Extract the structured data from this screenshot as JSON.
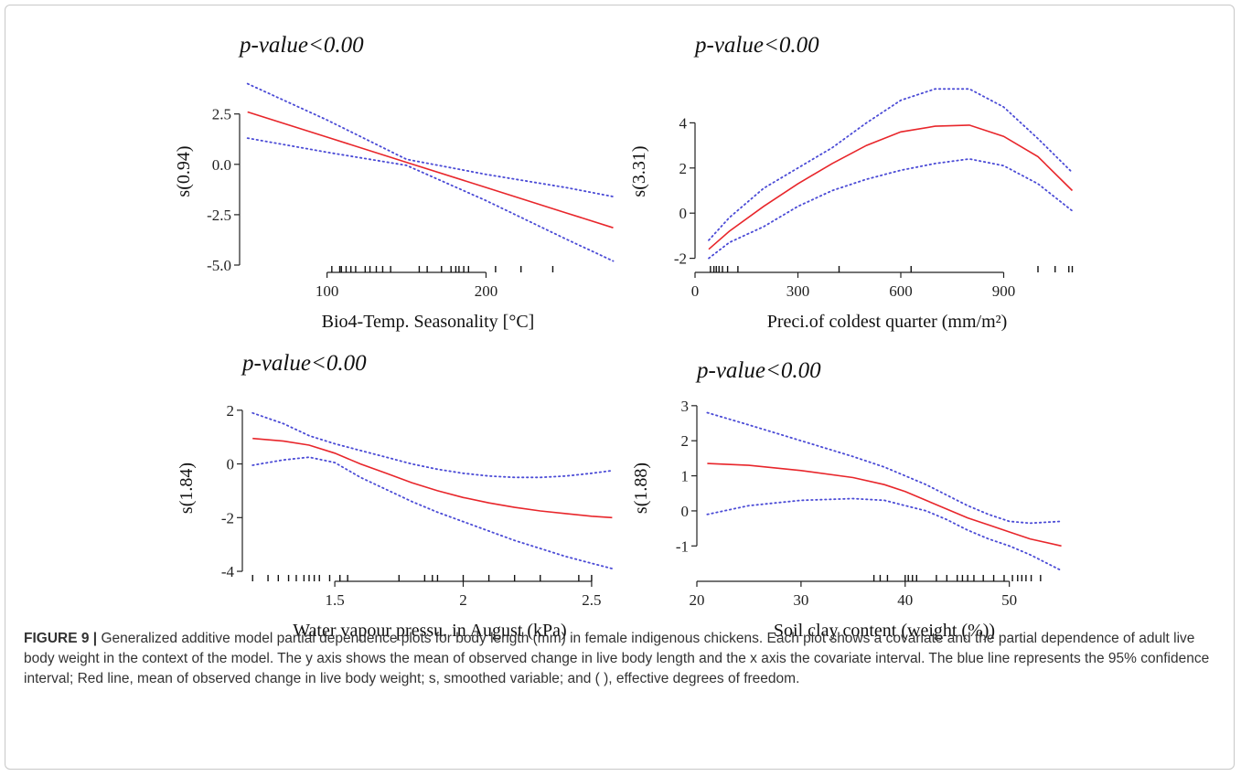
{
  "caption": {
    "label": "FIGURE 9 |",
    "text": "Generalized additive model partial dependence plots for body length (mm) in female indigenous chickens. Each plot shows a covariate and the partial dependence of adult live body weight in the context of the model. The y axis shows the mean of observed change in live body length and the x axis the covariate interval. The blue line represents the 95% confidence interval; Red line, mean of observed change in live body weight; s, smoothed variable; and ( ), effective degrees of freedom."
  },
  "colors": {
    "fit": "#e8262b",
    "ci": "#4b4bd6",
    "axis": "#222222"
  },
  "chart_data": [
    {
      "type": "line",
      "title": "p-value<0.00",
      "xlabel": "Bio4-Temp. Seasonality [°C]",
      "ylabel": "s(0.94)",
      "xlim": [
        45,
        282
      ],
      "ylim": [
        -5.0,
        4.3
      ],
      "xticks": [
        100,
        200
      ],
      "yticks": [
        -5.0,
        -2.5,
        0.0,
        2.5
      ],
      "ytick_format": "1dp",
      "series": [
        {
          "role": "fit",
          "x": [
            50,
            100,
            150,
            200,
            250,
            280
          ],
          "y": [
            2.6,
            1.35,
            0.1,
            -1.15,
            -2.4,
            -3.15
          ]
        },
        {
          "role": "upper",
          "x": [
            50,
            100,
            150,
            200,
            250,
            280
          ],
          "y": [
            4.0,
            2.2,
            0.25,
            -0.5,
            -1.15,
            -1.6
          ]
        },
        {
          "role": "lower",
          "x": [
            50,
            100,
            150,
            200,
            250,
            280
          ],
          "y": [
            1.3,
            0.6,
            -0.05,
            -1.8,
            -3.7,
            -4.8
          ]
        }
      ],
      "rug": [
        103,
        108,
        109,
        112,
        115,
        118,
        124,
        127,
        131,
        135,
        140,
        158,
        163,
        172,
        178,
        181,
        183,
        186,
        189,
        206,
        222,
        242
      ]
    },
    {
      "type": "line",
      "title": "p-value<0.00",
      "xlabel": "Preci.of coldest quarter (mm/m²)",
      "ylabel": "s(3.31)",
      "xlim": [
        0,
        1120
      ],
      "ylim": [
        -2.3,
        6.0
      ],
      "xticks": [
        0,
        300,
        600,
        900
      ],
      "yticks": [
        -2,
        0,
        2,
        4
      ],
      "ytick_format": "int",
      "series": [
        {
          "role": "fit",
          "x": [
            40,
            100,
            200,
            300,
            400,
            500,
            600,
            700,
            800,
            900,
            1000,
            1100
          ],
          "y": [
            -1.6,
            -0.8,
            0.3,
            1.3,
            2.2,
            3.0,
            3.6,
            3.85,
            3.9,
            3.4,
            2.5,
            1.0
          ]
        },
        {
          "role": "upper",
          "x": [
            40,
            100,
            200,
            300,
            400,
            500,
            600,
            700,
            800,
            900,
            1000,
            1100
          ],
          "y": [
            -1.2,
            -0.2,
            1.1,
            2.0,
            2.9,
            4.0,
            5.0,
            5.5,
            5.5,
            4.7,
            3.3,
            1.8
          ]
        },
        {
          "role": "lower",
          "x": [
            40,
            100,
            200,
            300,
            400,
            500,
            600,
            700,
            800,
            900,
            1000,
            1100
          ],
          "y": [
            -2.0,
            -1.3,
            -0.6,
            0.3,
            1.0,
            1.5,
            1.9,
            2.2,
            2.4,
            2.1,
            1.3,
            0.1
          ]
        }
      ],
      "rug": [
        45,
        55,
        62,
        70,
        80,
        95,
        125,
        420,
        630,
        1000,
        1050,
        1090,
        1100
      ]
    },
    {
      "type": "line",
      "title": "p-value<0.00",
      "xlabel": "Water vapour pressu. in August (kPa)",
      "ylabel": "s(1.84)",
      "xlim": [
        1.14,
        2.6
      ],
      "ylim": [
        -4.1,
        2.3
      ],
      "xticks": [
        1.5,
        2.0,
        2.5
      ],
      "yticks": [
        -4,
        -2,
        0,
        2
      ],
      "ytick_format": "int",
      "series": [
        {
          "role": "fit",
          "x": [
            1.18,
            1.3,
            1.4,
            1.5,
            1.6,
            1.7,
            1.8,
            1.9,
            2.0,
            2.1,
            2.2,
            2.3,
            2.4,
            2.5,
            2.58
          ],
          "y": [
            0.95,
            0.85,
            0.7,
            0.4,
            0.0,
            -0.35,
            -0.7,
            -1.0,
            -1.25,
            -1.45,
            -1.62,
            -1.75,
            -1.85,
            -1.95,
            -2.0
          ]
        },
        {
          "role": "upper",
          "x": [
            1.18,
            1.3,
            1.4,
            1.5,
            1.6,
            1.7,
            1.8,
            1.9,
            2.0,
            2.1,
            2.2,
            2.3,
            2.4,
            2.5,
            2.58
          ],
          "y": [
            1.9,
            1.5,
            1.05,
            0.75,
            0.5,
            0.25,
            0.0,
            -0.2,
            -0.35,
            -0.45,
            -0.5,
            -0.5,
            -0.45,
            -0.35,
            -0.25
          ]
        },
        {
          "role": "lower",
          "x": [
            1.18,
            1.3,
            1.4,
            1.5,
            1.6,
            1.7,
            1.8,
            1.9,
            2.0,
            2.1,
            2.2,
            2.3,
            2.4,
            2.5,
            2.58
          ],
          "y": [
            -0.05,
            0.15,
            0.25,
            0.05,
            -0.5,
            -0.95,
            -1.4,
            -1.8,
            -2.15,
            -2.5,
            -2.85,
            -3.15,
            -3.45,
            -3.7,
            -3.9
          ]
        }
      ],
      "rug": [
        1.18,
        1.24,
        1.28,
        1.32,
        1.35,
        1.38,
        1.4,
        1.42,
        1.44,
        1.48,
        1.52,
        1.55,
        1.75,
        1.85,
        1.88,
        1.9,
        2.0,
        2.1,
        2.2,
        2.3,
        2.45,
        2.5
      ]
    },
    {
      "type": "line",
      "title": "p-value<0.00",
      "xlabel": "Soil clay content (weight (%))",
      "ylabel": "s(1.88)",
      "xlim": [
        20,
        56
      ],
      "ylim": [
        -1.8,
        3.1
      ],
      "xticks": [
        20,
        30,
        40,
        50
      ],
      "yticks": [
        -1,
        0,
        1,
        2,
        3
      ],
      "ytick_format": "int",
      "series": [
        {
          "role": "fit",
          "x": [
            21,
            25,
            30,
            35,
            38,
            40,
            42,
            44,
            46,
            48,
            50,
            52,
            55
          ],
          "y": [
            1.35,
            1.3,
            1.15,
            0.95,
            0.75,
            0.55,
            0.3,
            0.05,
            -0.2,
            -0.4,
            -0.6,
            -0.8,
            -1.0
          ]
        },
        {
          "role": "upper",
          "x": [
            21,
            25,
            30,
            35,
            38,
            40,
            42,
            44,
            46,
            48,
            50,
            52,
            55
          ],
          "y": [
            2.8,
            2.45,
            2.0,
            1.55,
            1.25,
            1.0,
            0.75,
            0.45,
            0.15,
            -0.1,
            -0.3,
            -0.35,
            -0.3
          ]
        },
        {
          "role": "lower",
          "x": [
            21,
            25,
            30,
            35,
            38,
            40,
            42,
            44,
            46,
            48,
            50,
            52,
            55
          ],
          "y": [
            -0.1,
            0.15,
            0.3,
            0.35,
            0.3,
            0.15,
            0.0,
            -0.25,
            -0.55,
            -0.8,
            -1.0,
            -1.25,
            -1.7
          ]
        }
      ],
      "rug": [
        37,
        37.6,
        38.3,
        40,
        40.3,
        40.7,
        41.1,
        43,
        44,
        45,
        45.5,
        46,
        46.6,
        47.5,
        48.5,
        49.5,
        50.3,
        50.8,
        51.2,
        51.6,
        52.1,
        53
      ]
    }
  ]
}
